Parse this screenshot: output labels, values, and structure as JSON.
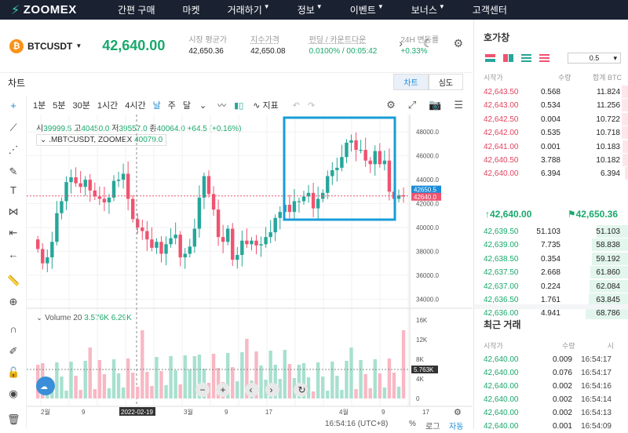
{
  "nav": {
    "logo": "ZOOMEX",
    "items": [
      "간편 구매",
      "마켓",
      "거래하기",
      "정보",
      "이벤트",
      "보너스",
      "고객센터"
    ],
    "dropdown_flags": [
      false,
      false,
      true,
      true,
      true,
      true,
      false
    ]
  },
  "ticker": {
    "symbol": "BTCUSDT",
    "last_price": "42,640.00",
    "stats": [
      {
        "label": "시장 평균가",
        "value": "42,650.36",
        "color": "normal"
      },
      {
        "label": "지수가격",
        "value": "42,650.08",
        "color": "normal"
      },
      {
        "label": "펀딩 / 카운트다운",
        "value": "0.0100% / 00:05:42",
        "color": "green"
      },
      {
        "label": "24H 변동률",
        "value": "+0.33%",
        "color": "green"
      }
    ]
  },
  "chart_panel": {
    "title": "차트",
    "tabs": [
      "차트",
      "심도"
    ]
  },
  "toolbar": {
    "timeframes": [
      "1분",
      "5분",
      "30분",
      "1시간",
      "4시간",
      "날",
      "주",
      "달"
    ],
    "active_timeframe": "날",
    "indicator_label": "지표"
  },
  "legend": {
    "ohlc": {
      "o_label": "시",
      "o": "39999.5",
      "h_label": "고",
      "h": "40450.0",
      "l_label": "저",
      "l": "39557.0",
      "c_label": "종",
      "c": "40064.0",
      "chg": "+64.5 (+0.16%)"
    },
    "source": ".MBTCUSDT, ZOOMEX",
    "source_value": "40079.0",
    "volume_label": "Volume 20",
    "vol_a": "3.576K",
    "vol_b": "6.29K"
  },
  "chart_data": {
    "type": "candlestick",
    "y_ticks": [
      "48000.0",
      "46000.0",
      "44000.0",
      "42000.0",
      "40000.0",
      "38000.0",
      "36000.0",
      "34000.0"
    ],
    "price_tags": {
      "index": "42650.5",
      "last": "42640.0"
    },
    "volume_ticks": [
      "16K",
      "12K",
      "8K",
      "4K",
      "0"
    ],
    "volume_tag": "5.763K",
    "x_ticks": [
      "2월",
      "9",
      "2022-02-19",
      "3월",
      "9",
      "17",
      "4월",
      "9",
      "17"
    ],
    "ylim": [
      33500,
      48800
    ]
  },
  "bottom": {
    "time": "16:54:16 (UTC+8)",
    "pct": "%",
    "log": "로그",
    "auto": "자동"
  },
  "orderbook": {
    "title": "호가창",
    "step": "0.5",
    "headers": [
      "시작가",
      "수량",
      "합계 BTC"
    ],
    "asks": [
      {
        "p": "42,643.50",
        "q": "0.568",
        "t": "11.824"
      },
      {
        "p": "42,643.00",
        "q": "0.534",
        "t": "11.256"
      },
      {
        "p": "42,642.50",
        "q": "0.004",
        "t": "10.722"
      },
      {
        "p": "42,642.00",
        "q": "0.535",
        "t": "10.718"
      },
      {
        "p": "42,641.00",
        "q": "0.001",
        "t": "10.183"
      },
      {
        "p": "42,640.50",
        "q": "3.788",
        "t": "10.182"
      },
      {
        "p": "42,640.00",
        "q": "6.394",
        "t": "6.394"
      }
    ],
    "mid_last": "42,640.00",
    "mid_mark": "42,650.36",
    "bids": [
      {
        "p": "42,639.50",
        "q": "51.103",
        "t": "51.103"
      },
      {
        "p": "42,639.00",
        "q": "7.735",
        "t": "58.838"
      },
      {
        "p": "42,638.50",
        "q": "0.354",
        "t": "59.192"
      },
      {
        "p": "42,637.50",
        "q": "2.668",
        "t": "61.860"
      },
      {
        "p": "42,637.00",
        "q": "0.224",
        "t": "62.084"
      },
      {
        "p": "42,636.50",
        "q": "1.761",
        "t": "63.845"
      },
      {
        "p": "42,636.00",
        "q": "4.941",
        "t": "68.786"
      }
    ]
  },
  "trades": {
    "title": "최근 거래",
    "headers": [
      "시작가",
      "수량",
      "시"
    ],
    "rows": [
      {
        "p": "42,640.00",
        "q": "0.009",
        "t": "16:54:17"
      },
      {
        "p": "42,640.00",
        "q": "0.076",
        "t": "16:54:17"
      },
      {
        "p": "42,640.00",
        "q": "0.002",
        "t": "16:54:16"
      },
      {
        "p": "42,640.00",
        "q": "0.002",
        "t": "16:54:14"
      },
      {
        "p": "42,640.00",
        "q": "0.002",
        "t": "16:54:13"
      },
      {
        "p": "42,640.00",
        "q": "0.001",
        "t": "16:54:09"
      }
    ]
  },
  "colors": {
    "up": "#26a69a",
    "down": "#ef5370",
    "accent": "#1a8cd8",
    "highlight_box": "#1a9cd8"
  }
}
